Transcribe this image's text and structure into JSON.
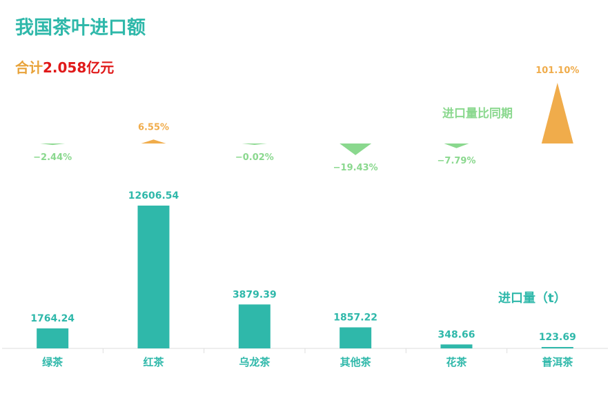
{
  "summary": {
    "total_label": "合计",
    "total_value": "2.058亿元"
  },
  "colors": {
    "bar": "#2fb8aa",
    "positive": "#f0ac4b",
    "negative": "#8ad88e",
    "title": "#2fb8aa",
    "axis": "#dddddd"
  },
  "chart_data": {
    "type": "bar",
    "title": "我国茶叶进口额",
    "categories": [
      "绿茶",
      "红茶",
      "乌龙茶",
      "其他茶",
      "花茶",
      "普洱茶"
    ],
    "series": [
      {
        "name": "进口量（t）",
        "values": [
          1764.24,
          12606.54,
          3879.39,
          1857.22,
          348.66,
          123.69
        ],
        "labels": [
          "1764.24",
          "12606.54",
          "3879.39",
          "1857.22",
          "348.66",
          "123.69"
        ]
      },
      {
        "name": "进口量比同期",
        "values": [
          -2.44,
          6.55,
          -0.02,
          -19.43,
          -7.79,
          101.1
        ],
        "labels": [
          "−2.44%",
          "6.55%",
          "−0.02%",
          "−19.43%",
          "−7.79%",
          "101.10%"
        ]
      }
    ],
    "xlabel": "",
    "ylabel": "",
    "grid": false
  }
}
